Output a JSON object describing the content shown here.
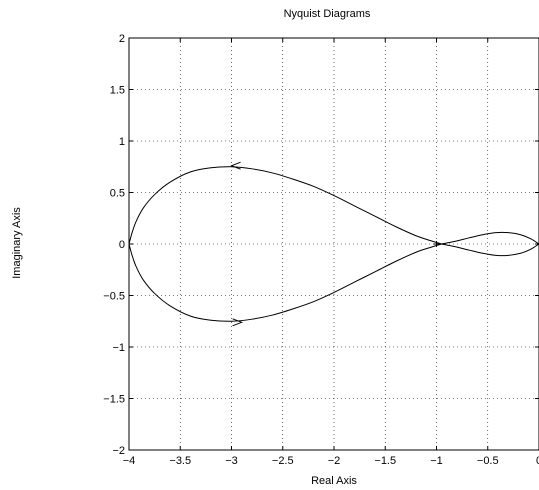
{
  "chart_data": {
    "type": "line",
    "title": "Nyquist Diagrams",
    "xlabel": "Real Axis",
    "ylabel": "Imaginary Axis",
    "xlim": [
      -4,
      0
    ],
    "ylim": [
      -2,
      2
    ],
    "grid": true,
    "x_ticks": [
      -4,
      -3.5,
      -3,
      -2.5,
      -2,
      -1.5,
      -1,
      -0.5,
      0
    ],
    "x_tick_labels": [
      "−4",
      "−3.5",
      "−3",
      "−2.5",
      "−2",
      "−1.5",
      "−1",
      "−0.5",
      "0"
    ],
    "y_ticks": [
      -2,
      -1.5,
      -1,
      -0.5,
      0,
      0.5,
      1,
      1.5,
      2
    ],
    "y_tick_labels": [
      "−2",
      "−1.5",
      "−1",
      "−0.5",
      "0",
      "0.5",
      "1",
      "1.5",
      "2"
    ],
    "series": [
      {
        "color": "#000000",
        "x": [
          0,
          -0.08,
          -0.18,
          -0.3,
          -0.42,
          -0.55,
          -0.68,
          -0.8,
          -0.9,
          -0.95,
          -1.05,
          -1.2,
          -1.4,
          -1.6,
          -1.8,
          -2.0,
          -2.2,
          -2.4,
          -2.6,
          -2.8,
          -3.0,
          -3.2,
          -3.4,
          -3.6,
          -3.75,
          -3.86,
          -3.93,
          -3.97,
          -4.0
        ],
        "y": [
          0,
          0.05,
          0.09,
          0.11,
          0.11,
          0.09,
          0.06,
          0.03,
          0.01,
          0,
          -0.03,
          -0.08,
          -0.17,
          -0.27,
          -0.37,
          -0.47,
          -0.56,
          -0.63,
          -0.69,
          -0.73,
          -0.75,
          -0.74,
          -0.7,
          -0.6,
          -0.48,
          -0.35,
          -0.22,
          -0.11,
          0
        ]
      },
      {
        "color": "#000000",
        "x": [
          0,
          -0.08,
          -0.18,
          -0.3,
          -0.42,
          -0.55,
          -0.68,
          -0.8,
          -0.9,
          -0.95,
          -1.05,
          -1.2,
          -1.4,
          -1.6,
          -1.8,
          -2.0,
          -2.2,
          -2.4,
          -2.6,
          -2.8,
          -3.0,
          -3.2,
          -3.4,
          -3.6,
          -3.75,
          -3.86,
          -3.93,
          -3.97,
          -4.0
        ],
        "y": [
          0,
          -0.05,
          -0.09,
          -0.11,
          -0.11,
          -0.09,
          -0.06,
          -0.03,
          -0.01,
          0,
          0.03,
          0.08,
          0.17,
          0.27,
          0.37,
          0.47,
          0.56,
          0.63,
          0.69,
          0.73,
          0.75,
          0.74,
          0.7,
          0.6,
          0.48,
          0.35,
          0.22,
          0.11,
          0
        ]
      }
    ],
    "annotations": [
      {
        "type": "arrow",
        "x": -2.95,
        "y": 0.76,
        "direction": "left"
      },
      {
        "type": "arrow",
        "x": -2.95,
        "y": -0.76,
        "direction": "right"
      },
      {
        "type": "marker",
        "shape": "plus",
        "x": -1,
        "y": 0
      }
    ]
  }
}
